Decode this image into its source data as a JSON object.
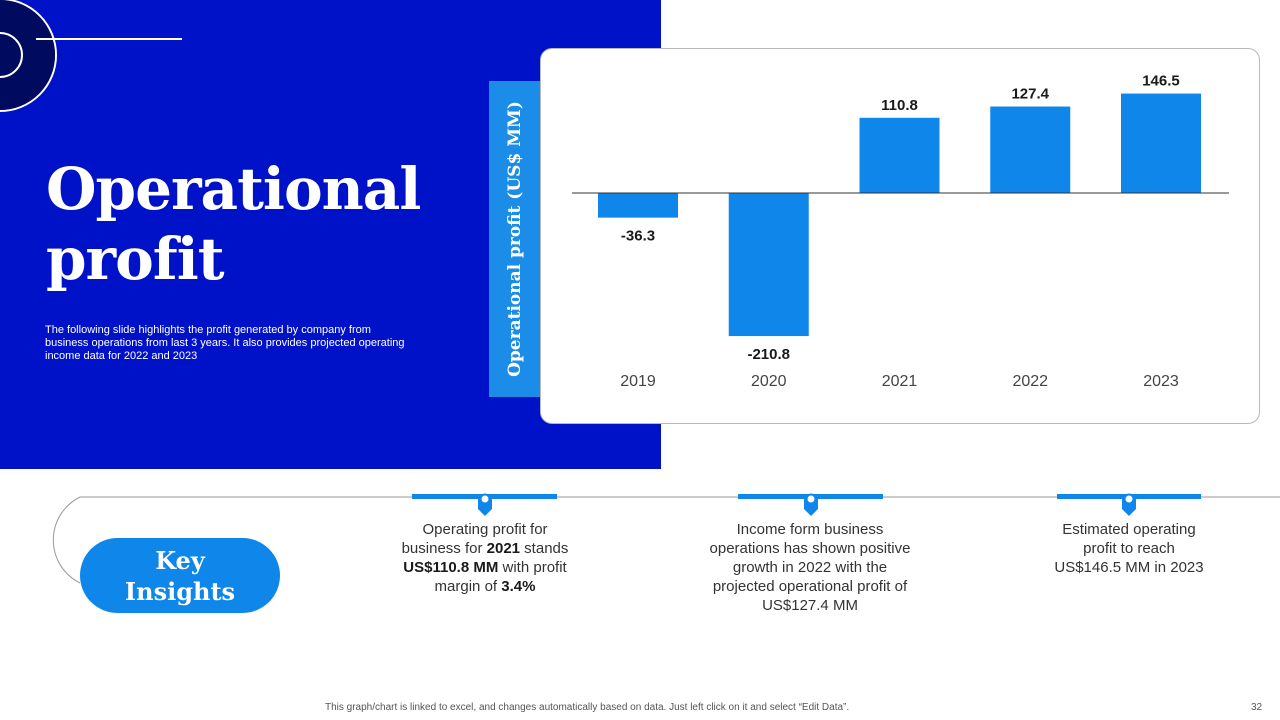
{
  "slide": {
    "title_line1": "Operational",
    "title_line2": "profit",
    "subtitle": "The following slide highlights the profit generated by  company from business operations from  last 3 years. It also provides projected operating income data for 2022 and 2023",
    "footer_note": "This graph/chart is linked to excel,  and changes automatically based on data. Just left click on it and select “Edit Data”.",
    "page_number": "32"
  },
  "colors": {
    "panel": "#0012C8",
    "accent": "#0E86EA",
    "axis_label_bg": "#1B8CE8"
  },
  "chart_data": {
    "type": "bar",
    "title": "",
    "xlabel": "",
    "ylabel": "Operational profit (US$ MM)",
    "categories": [
      "2019",
      "2020",
      "2021",
      "2022",
      "2023"
    ],
    "values": [
      -36.3,
      -210.8,
      110.8,
      127.4,
      146.5
    ],
    "value_labels": [
      "-36.3",
      "-210.8",
      "110.8",
      "127.4",
      "146.5"
    ],
    "ylim": [
      -210.8,
      146.5
    ],
    "grid": false,
    "legend": "none"
  },
  "insights": {
    "heading_line1": "Key",
    "heading_line2": "Insights",
    "card1": {
      "line1": "Operating profit for",
      "line2a": "business for ",
      "line2b": "2021",
      "line2c": " stands",
      "line3a": "US$110.8 MM",
      "line3b": " with profit",
      "line4a": "margin of ",
      "line4b": "3.4%"
    },
    "card2": {
      "line1": "Income form business",
      "line2": "operations has shown positive",
      "line3": "growth in 2022 with the",
      "line4": "projected operational profit of",
      "line5": "US$127.4 MM"
    },
    "card3": {
      "line1": "Estimated operating",
      "line2": "profit to reach",
      "line3": "US$146.5 MM in 2023"
    }
  }
}
